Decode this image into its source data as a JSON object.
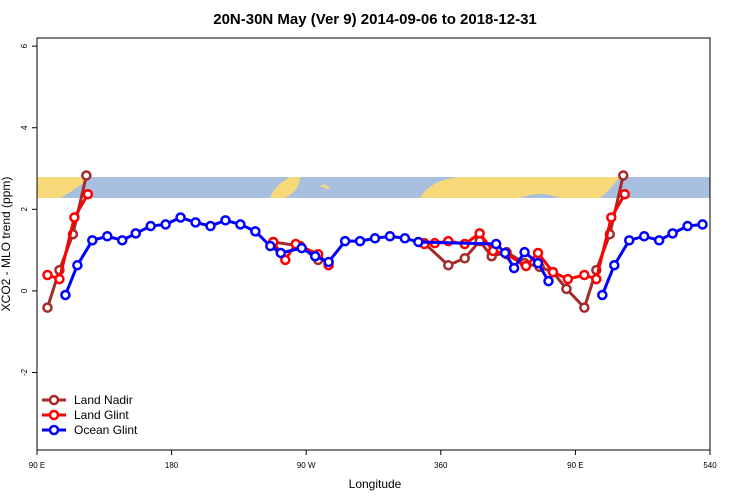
{
  "chart_data": {
    "type": "line",
    "title": "20N-30N May (Ver 9)   2014-09-06 to 2018-12-31",
    "xlabel": "Longitude",
    "ylabel": "XCO2 - MLO trend (ppm)",
    "xlim": [
      90,
      540
    ],
    "ylim": [
      -3.9,
      6.2
    ],
    "xticks": [
      {
        "value": 90,
        "label": "90 E"
      },
      180,
      {
        "value": 270,
        "label": "90 W"
      },
      360,
      {
        "value": 450,
        "label": "90 E"
      },
      540
    ],
    "yticks": [
      -2,
      0,
      2,
      4,
      6
    ],
    "legend": "bottom-left",
    "series": [
      {
        "name": "Land Nadir",
        "color": "#a52a2a",
        "x": [
          97,
          105,
          114,
          123,
          180,
          248,
          266,
          278,
          310,
          349,
          365,
          376,
          386,
          394,
          404,
          416,
          426,
          435,
          444,
          456,
          464,
          473,
          482
        ],
        "values": [
          -0.41,
          0.51,
          1.39,
          2.83,
          null,
          1.2,
          1.1,
          0.76,
          null,
          1.17,
          0.63,
          0.8,
          1.22,
          0.85,
          0.95,
          0.68,
          0.59,
          0.46,
          0.05,
          -0.41,
          0.51,
          1.39,
          2.83
        ]
      },
      {
        "name": "Land Glint",
        "color": "#ff0000",
        "x": [
          97,
          105,
          115,
          124,
          180,
          248,
          256,
          263,
          278,
          285,
          310,
          349,
          356,
          365,
          376,
          386,
          395,
          404,
          417,
          425,
          435,
          445,
          456,
          464,
          474,
          483
        ],
        "values": [
          0.39,
          0.29,
          1.8,
          2.37,
          null,
          1.2,
          0.76,
          1.15,
          0.9,
          0.63,
          null,
          1.15,
          1.17,
          1.22,
          1.15,
          1.41,
          0.98,
          0.9,
          0.61,
          0.93,
          0.46,
          0.29,
          0.39,
          0.29,
          1.8,
          2.37
        ]
      },
      {
        "name": "Ocean Glint",
        "color": "#0000ff",
        "x": [
          109,
          117,
          127,
          137,
          147,
          156,
          166,
          176,
          186,
          196,
          206,
          216,
          226,
          236,
          246,
          253,
          267,
          276,
          285,
          296,
          306,
          316,
          326,
          336,
          345,
          397,
          403,
          409,
          416,
          425,
          432,
          450,
          468,
          476,
          486,
          496,
          506,
          515,
          525,
          535
        ],
        "values": [
          -0.1,
          0.63,
          1.24,
          1.34,
          1.24,
          1.41,
          1.59,
          1.63,
          1.8,
          1.68,
          1.59,
          1.73,
          1.63,
          1.46,
          1.1,
          0.93,
          1.05,
          0.85,
          0.71,
          1.22,
          1.22,
          1.29,
          1.34,
          1.29,
          1.2,
          1.15,
          0.93,
          0.56,
          0.95,
          0.68,
          0.24,
          null,
          -0.1,
          0.63,
          1.24,
          1.34,
          1.24,
          1.41,
          1.59,
          1.63
        ]
      }
    ]
  }
}
